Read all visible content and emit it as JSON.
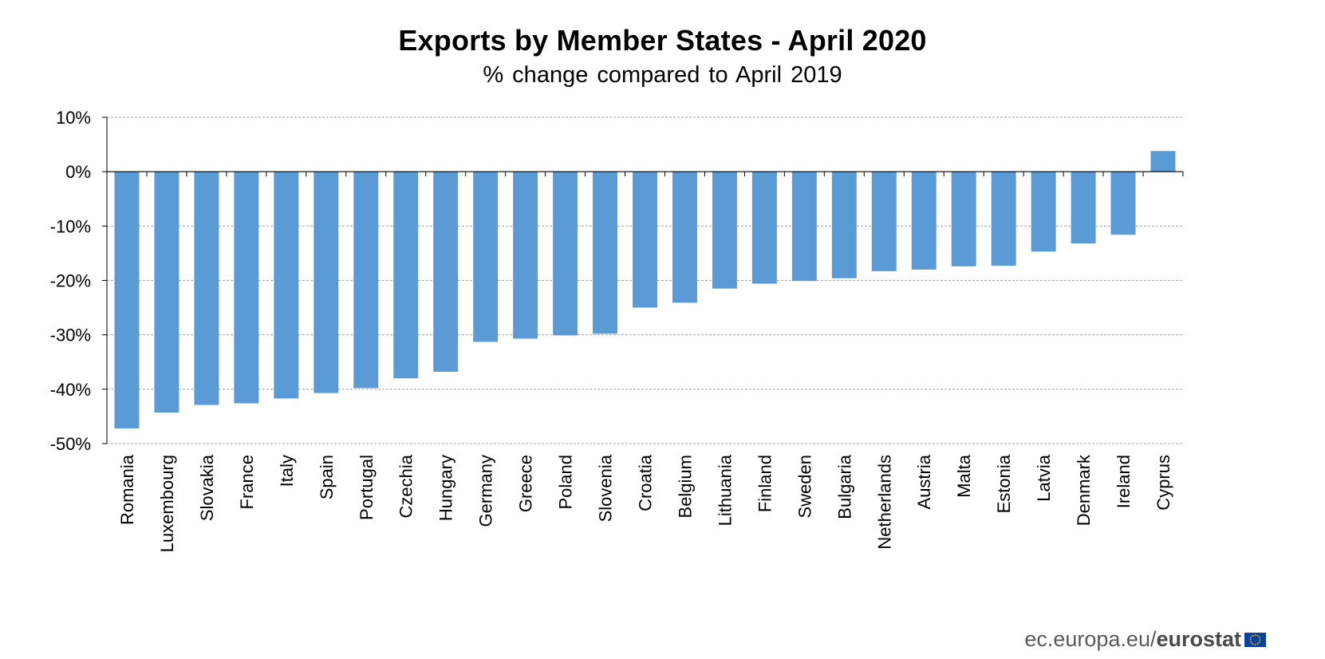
{
  "chart_data": {
    "type": "bar",
    "title": "Exports by Member States - April 2020",
    "subtitle": "% change compared to April 2019",
    "xlabel": "",
    "ylabel": "",
    "ylim": [
      -50,
      10
    ],
    "yticks": [
      10,
      0,
      -10,
      -20,
      -30,
      -40,
      -50
    ],
    "ytick_labels": [
      "10%",
      "0%",
      "-10%",
      "-20%",
      "-30%",
      "-40%",
      "-50%"
    ],
    "grid": true,
    "bar_color": "#5b9bd5",
    "categories": [
      "Romania",
      "Luxembourg",
      "Slovakia",
      "France",
      "Italy",
      "Spain",
      "Portugal",
      "Czechia",
      "Hungary",
      "Germany",
      "Greece",
      "Poland",
      "Slovenia",
      "Croatia",
      "Belgium",
      "Lithuania",
      "Finland",
      "Sweden",
      "Bulgaria",
      "Netherlands",
      "Austria",
      "Malta",
      "Estonia",
      "Latvia",
      "Denmark",
      "Ireland",
      "Cyprus"
    ],
    "values": [
      -47.2,
      -44.3,
      -42.9,
      -42.6,
      -41.7,
      -40.7,
      -39.8,
      -38.0,
      -36.8,
      -31.3,
      -30.7,
      -30.1,
      -29.8,
      -25.0,
      -24.1,
      -21.5,
      -20.6,
      -20.1,
      -19.6,
      -18.3,
      -18.0,
      -17.4,
      -17.3,
      -14.7,
      -13.2,
      -11.6,
      3.8
    ]
  },
  "footer": {
    "site": "ec.europa.eu/",
    "brand": "eurostat"
  },
  "colors": {
    "bar": "#5b9bd5",
    "grid": "#a6a6a6",
    "flag_blue": "#0d3f9f",
    "flag_star": "#ffdd00"
  }
}
